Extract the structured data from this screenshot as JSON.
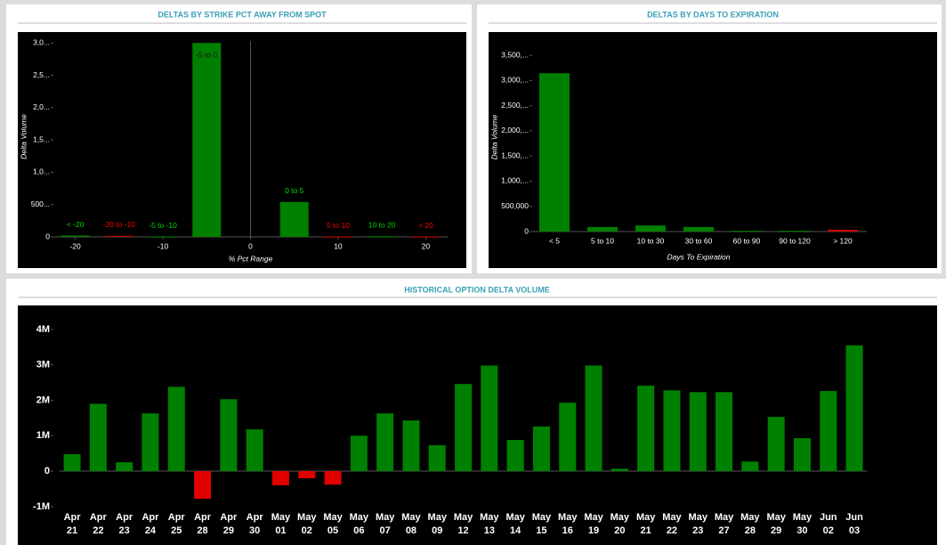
{
  "chart_data": [
    {
      "type": "bar",
      "title": "DELTAS BY STRIKE PCT AWAY FROM SPOT",
      "categories": [
        "< -20",
        "-20 to -10",
        "-5 to -10",
        "-5 to 0",
        "0 to 5",
        "5 to 10",
        "10 to 20",
        "> 20"
      ],
      "x": [
        -20,
        -15,
        -10,
        -5,
        5,
        10,
        15,
        20
      ],
      "values": [
        20,
        15,
        5,
        3000,
        540,
        5,
        10,
        5
      ],
      "colors": [
        "#008000",
        "#d00000",
        "#008000",
        "#008000",
        "#008000",
        "#d00000",
        "#008000",
        "#d00000"
      ],
      "x_label": "% Pct Range",
      "y_label": "Delta Volume",
      "xlim": [
        -22.5,
        22.5
      ],
      "xticks": [
        -20,
        -10,
        0,
        10,
        20
      ],
      "ylim": [
        0,
        3100
      ],
      "yticks": [
        0,
        {
          "value": 500,
          "label": "500..."
        },
        {
          "value": 1000,
          "label": "1,0..."
        },
        {
          "value": 1500,
          "label": "1,5..."
        },
        {
          "value": 2000,
          "label": "2,0..."
        },
        {
          "value": 2500,
          "label": "2,5..."
        },
        {
          "value": 3000,
          "label": "3,0..."
        }
      ],
      "grid": false
    },
    {
      "type": "bar",
      "title": "DELTAS BY DAYS TO EXPIRATION",
      "categories": [
        "< 5",
        "5 to 10",
        "10 to 30",
        "30 to 60",
        "60 to 90",
        "90 to 120",
        "> 120"
      ],
      "values": [
        3145000,
        90000,
        120000,
        90000,
        15000,
        15000,
        35000
      ],
      "colors": [
        "#008000",
        "#008000",
        "#008000",
        "#008000",
        "#008000",
        "#008000",
        "#d00000"
      ],
      "x_label": "Days To Expiration",
      "y_label": "Delta Volume",
      "ylim": [
        0,
        3750000
      ],
      "yticks": [
        0,
        {
          "value": 500000,
          "label": "500,000"
        },
        {
          "value": 1000000,
          "label": "1,000,..."
        },
        {
          "value": 1500000,
          "label": "1,500,..."
        },
        {
          "value": 2000000,
          "label": "2,000,..."
        },
        {
          "value": 2500000,
          "label": "2,500,..."
        },
        {
          "value": 3000000,
          "label": "3,000,..."
        },
        {
          "value": 3500000,
          "label": "3,500,..."
        }
      ],
      "grid": false
    },
    {
      "type": "bar",
      "title": "HISTORICAL OPTION DELTA VOLUME",
      "categories": [
        "Apr 21",
        "Apr 22",
        "Apr 23",
        "Apr 24",
        "Apr 25",
        "Apr 28",
        "Apr 29",
        "Apr 30",
        "May 01",
        "May 02",
        "May 05",
        "May 06",
        "May 07",
        "May 08",
        "May 09",
        "May 12",
        "May 13",
        "May 14",
        "May 15",
        "May 16",
        "May 19",
        "May 20",
        "May 21",
        "May 22",
        "May 23",
        "May 27",
        "May 28",
        "May 29",
        "May 30",
        "Jun 02",
        "Jun 03"
      ],
      "values": [
        480000,
        1900000,
        250000,
        1630000,
        2380000,
        -780000,
        2030000,
        1180000,
        -400000,
        -200000,
        -380000,
        1000000,
        1630000,
        1430000,
        730000,
        2460000,
        2980000,
        880000,
        1260000,
        1930000,
        2980000,
        70000,
        2410000,
        2280000,
        2230000,
        2230000,
        270000,
        1530000,
        930000,
        2260000,
        3550000
      ],
      "color": "#008000",
      "negative_color": "#e00000",
      "ylim": [
        -1230000,
        4500000
      ],
      "yticks": [
        {
          "value": -1000000,
          "label": "-1M"
        },
        0,
        {
          "value": 1000000,
          "label": "1M"
        },
        {
          "value": 2000000,
          "label": "2M"
        },
        {
          "value": 3000000,
          "label": "3M"
        },
        {
          "value": 4000000,
          "label": "4M"
        }
      ],
      "grid": false
    }
  ]
}
